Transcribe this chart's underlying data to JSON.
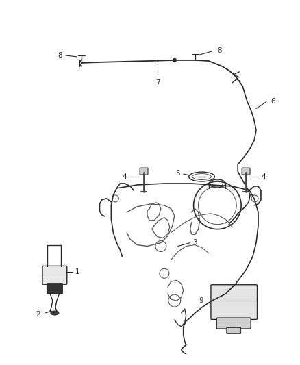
{
  "bg_color": "#ffffff",
  "fig_width": 4.38,
  "fig_height": 5.33,
  "dpi": 100,
  "lc": "#2a2a2a",
  "lc2": "#555555",
  "lc3": "#888888"
}
